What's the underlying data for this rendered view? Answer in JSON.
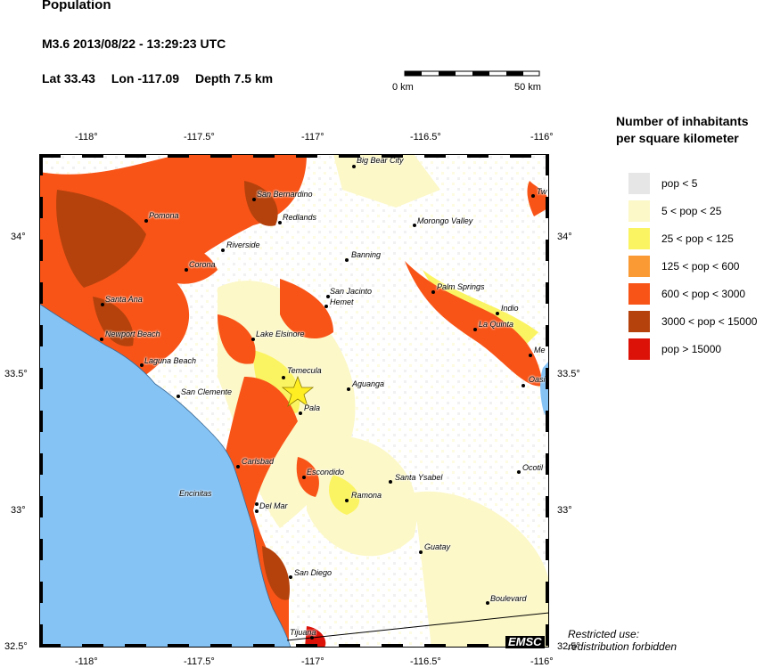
{
  "header": {
    "title": "Population",
    "event": "M3.6  2013/08/22 - 13:29:23 UTC",
    "lat": "Lat 33.43",
    "lon": "Lon -117.09",
    "depth": "Depth  7.5 km"
  },
  "scale_bar": {
    "start_label": "0 km",
    "end_label": "50 km"
  },
  "axes": {
    "x_ticks": [
      "-118°",
      "-117.5°",
      "-117°",
      "-116.5°",
      "-116°"
    ],
    "y_ticks": [
      "34°",
      "33.5°",
      "33°",
      "32.5°"
    ]
  },
  "legend": {
    "title_line1": "Number of inhabitants",
    "title_line2": "per square kilometer",
    "items": [
      {
        "label": "pop < 5",
        "color": "#e6e6e6"
      },
      {
        "label": "5 < pop < 25",
        "color": "#fcf8c8"
      },
      {
        "label": "25 < pop < 125",
        "color": "#fbf462"
      },
      {
        "label": "125 < pop < 600",
        "color": "#fa9a34"
      },
      {
        "label": "600 < pop < 3000",
        "color": "#f85418"
      },
      {
        "label": "3000 < pop < 15000",
        "color": "#b5420c"
      },
      {
        "label": "pop > 15000",
        "color": "#dc1208"
      }
    ]
  },
  "epicenter": {
    "marker": "star-icon",
    "color": "#ffee22"
  },
  "cities": [
    "Big Bear City",
    "Tw",
    "San Bernardino",
    "Pomona",
    "Redlands",
    "Morongo Valley",
    "Riverside",
    "Corona",
    "Banning",
    "San Jacinto",
    "Hemet",
    "Palm Springs",
    "Indio",
    "Santa Ana",
    "La Quinta",
    "Newport Beach",
    "Lake Elsinore",
    "Me",
    "Laguna Beach",
    "Temecula",
    "Oasi",
    "San Clemente",
    "Aguanga",
    "Pala",
    "Carlsbad",
    "Escondido",
    "Santa Ysabel",
    "Ocotil",
    "Encinitas",
    "Ramona",
    "Del Mar",
    "Guatay",
    "San Diego",
    "Boulevard",
    "Tijuana"
  ],
  "brand": "EMSC",
  "restricted_line1": "Restricted use:",
  "restricted_line2": "redistribution forbidden",
  "colors": {
    "ocean": "#86c3f5",
    "land": "#ffffff"
  }
}
